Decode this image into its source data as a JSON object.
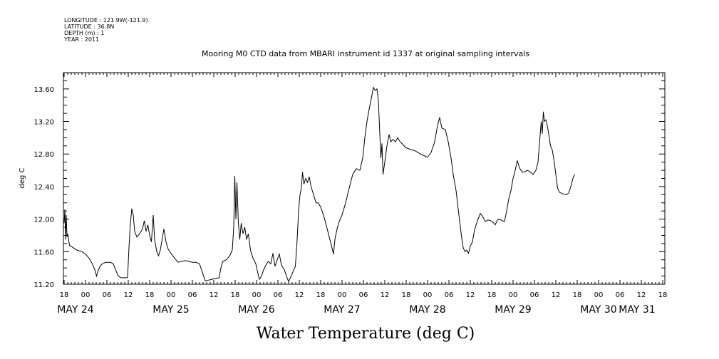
{
  "meta": {
    "longitude": "LONGITUDE : 121.9W(-121.9)",
    "latitude": "LATITUDE : 36.8N",
    "depth": "DEPTH (m) : 1",
    "year": "YEAR : 2011"
  },
  "chart_data": {
    "type": "line",
    "title": "Mooring M0 CTD data from MBARI instrument id 1337 at original sampling intervals",
    "xlabel": "Water Temperature (deg C)",
    "ylabel": "deg C",
    "ylim": [
      11.2,
      13.8
    ],
    "xlim": [
      -6,
      162
    ],
    "x_units": "hours from 2011-05-24 00:00",
    "yticks": [
      "11.20",
      "11.60",
      "12.00",
      "12.40",
      "12.80",
      "13.20",
      "13.60"
    ],
    "ytick_values": [
      11.2,
      11.6,
      12.0,
      12.4,
      12.8,
      13.2,
      13.6
    ],
    "hour_ticks": [
      "18",
      "00",
      "06",
      "12",
      "18",
      "00",
      "06",
      "12",
      "18",
      "00",
      "06",
      "12",
      "18",
      "00",
      "06",
      "12",
      "18",
      "00",
      "06",
      "12",
      "18",
      "00",
      "06",
      "12",
      "18",
      "00",
      "06",
      "12",
      "18"
    ],
    "hour_tick_positions": [
      -6,
      0,
      6,
      12,
      18,
      24,
      30,
      36,
      42,
      48,
      54,
      60,
      66,
      72,
      78,
      84,
      90,
      96,
      102,
      108,
      114,
      120,
      126,
      132,
      138,
      144,
      150,
      156,
      162
    ],
    "day_labels": [
      "MAY 24",
      "MAY 25",
      "MAY 26",
      "MAY 27",
      "MAY 28",
      "MAY 29",
      "MAY 30",
      "MAY 31"
    ],
    "day_label_positions": [
      0,
      24,
      48,
      72,
      96,
      120,
      144,
      168
    ],
    "grid": false,
    "series": [
      {
        "color": "#000000",
        "points": [
          [
            -6,
            11.95
          ],
          [
            -5.8,
            12.12
          ],
          [
            -5.6,
            11.75
          ],
          [
            -5.4,
            12.05
          ],
          [
            -5.2,
            11.78
          ],
          [
            -5,
            11.82
          ],
          [
            -4.5,
            11.68
          ],
          [
            -3.5,
            11.65
          ],
          [
            -2.5,
            11.62
          ],
          [
            -1,
            11.6
          ],
          [
            0,
            11.57
          ],
          [
            1,
            11.52
          ],
          [
            1.8,
            11.46
          ],
          [
            2.6,
            11.38
          ],
          [
            3.1,
            11.3
          ],
          [
            3.5,
            11.36
          ],
          [
            4.2,
            11.43
          ],
          [
            5,
            11.46
          ],
          [
            6,
            11.47
          ],
          [
            7,
            11.47
          ],
          [
            7.8,
            11.45
          ],
          [
            8.5,
            11.37
          ],
          [
            9.2,
            11.3
          ],
          [
            10,
            11.28
          ],
          [
            11,
            11.28
          ],
          [
            11.8,
            11.28
          ],
          [
            12.2,
            11.65
          ],
          [
            12.6,
            11.95
          ],
          [
            13,
            12.13
          ],
          [
            13.4,
            12.05
          ],
          [
            13.8,
            11.85
          ],
          [
            14.4,
            11.78
          ],
          [
            15.2,
            11.82
          ],
          [
            16,
            11.88
          ],
          [
            16.5,
            11.98
          ],
          [
            17,
            11.85
          ],
          [
            17.5,
            11.93
          ],
          [
            18,
            11.8
          ],
          [
            18.5,
            11.72
          ],
          [
            19,
            12.05
          ],
          [
            19.4,
            11.75
          ],
          [
            20,
            11.6
          ],
          [
            20.5,
            11.55
          ],
          [
            21,
            11.62
          ],
          [
            21.5,
            11.75
          ],
          [
            22,
            11.88
          ],
          [
            22.6,
            11.72
          ],
          [
            23.2,
            11.63
          ],
          [
            24,
            11.58
          ],
          [
            25,
            11.52
          ],
          [
            26,
            11.47
          ],
          [
            27,
            11.48
          ],
          [
            28,
            11.49
          ],
          [
            29,
            11.48
          ],
          [
            30,
            11.47
          ],
          [
            31,
            11.47
          ],
          [
            32,
            11.45
          ],
          [
            33,
            11.32
          ],
          [
            33.6,
            11.24
          ],
          [
            34.5,
            11.25
          ],
          [
            35.5,
            11.26
          ],
          [
            36.5,
            11.27
          ],
          [
            37.5,
            11.28
          ],
          [
            38,
            11.4
          ],
          [
            38.5,
            11.48
          ],
          [
            39.5,
            11.5
          ],
          [
            40.5,
            11.55
          ],
          [
            41.2,
            11.62
          ],
          [
            41.6,
            11.9
          ],
          [
            41.9,
            12.53
          ],
          [
            42.2,
            12.0
          ],
          [
            42.5,
            12.45
          ],
          [
            42.9,
            11.95
          ],
          [
            43.3,
            11.75
          ],
          [
            43.7,
            11.95
          ],
          [
            44.2,
            11.82
          ],
          [
            44.7,
            11.9
          ],
          [
            45.2,
            11.75
          ],
          [
            45.7,
            11.82
          ],
          [
            46.3,
            11.62
          ],
          [
            47,
            11.52
          ],
          [
            47.8,
            11.45
          ],
          [
            48.3,
            11.35
          ],
          [
            48.8,
            11.26
          ],
          [
            49.4,
            11.3
          ],
          [
            50,
            11.38
          ],
          [
            50.7,
            11.44
          ],
          [
            51.3,
            11.48
          ],
          [
            52,
            11.45
          ],
          [
            52.6,
            11.58
          ],
          [
            53.2,
            11.42
          ],
          [
            53.8,
            11.5
          ],
          [
            54.4,
            11.57
          ],
          [
            55,
            11.43
          ],
          [
            55.8,
            11.38
          ],
          [
            56.4,
            11.3
          ],
          [
            57,
            11.23
          ],
          [
            57.5,
            11.28
          ],
          [
            58.2,
            11.35
          ],
          [
            58.9,
            11.42
          ],
          [
            59.4,
            11.75
          ],
          [
            59.8,
            12.1
          ],
          [
            60.2,
            12.3
          ],
          [
            60.6,
            12.38
          ],
          [
            60.9,
            12.58
          ],
          [
            61.3,
            12.43
          ],
          [
            61.8,
            12.5
          ],
          [
            62.3,
            12.45
          ],
          [
            62.8,
            12.52
          ],
          [
            63.3,
            12.4
          ],
          [
            64,
            12.3
          ],
          [
            64.7,
            12.2
          ],
          [
            65.3,
            12.2
          ],
          [
            66,
            12.15
          ],
          [
            67,
            12.02
          ],
          [
            68,
            11.85
          ],
          [
            69,
            11.68
          ],
          [
            69.6,
            11.57
          ],
          [
            70,
            11.75
          ],
          [
            70.6,
            11.88
          ],
          [
            71.2,
            11.97
          ],
          [
            72,
            12.05
          ],
          [
            73,
            12.2
          ],
          [
            74,
            12.38
          ],
          [
            75,
            12.55
          ],
          [
            76,
            12.62
          ],
          [
            77,
            12.6
          ],
          [
            77.8,
            12.75
          ],
          [
            78.4,
            13.0
          ],
          [
            79,
            13.2
          ],
          [
            79.6,
            13.35
          ],
          [
            80.2,
            13.48
          ],
          [
            80.8,
            13.62
          ],
          [
            81.3,
            13.58
          ],
          [
            81.8,
            13.6
          ],
          [
            82.2,
            13.45
          ],
          [
            82.6,
            13.05
          ],
          [
            82.9,
            12.75
          ],
          [
            83.2,
            12.93
          ],
          [
            83.5,
            12.55
          ],
          [
            84,
            12.7
          ],
          [
            84.6,
            12.9
          ],
          [
            85.2,
            13.04
          ],
          [
            85.7,
            12.95
          ],
          [
            86.3,
            12.98
          ],
          [
            87,
            12.95
          ],
          [
            87.6,
            13.0
          ],
          [
            88.3,
            12.95
          ],
          [
            89,
            12.92
          ],
          [
            89.8,
            12.88
          ],
          [
            91,
            12.86
          ],
          [
            92.5,
            12.84
          ],
          [
            94,
            12.8
          ],
          [
            95,
            12.78
          ],
          [
            96,
            12.76
          ],
          [
            97,
            12.82
          ],
          [
            98,
            12.95
          ],
          [
            98.8,
            13.15
          ],
          [
            99.4,
            13.25
          ],
          [
            100,
            13.12
          ],
          [
            101,
            13.1
          ],
          [
            101.8,
            12.95
          ],
          [
            102.6,
            12.75
          ],
          [
            103.2,
            12.55
          ],
          [
            104,
            12.35
          ],
          [
            104.8,
            12.05
          ],
          [
            105.5,
            11.8
          ],
          [
            106,
            11.65
          ],
          [
            106.5,
            11.6
          ],
          [
            107,
            11.62
          ],
          [
            107.5,
            11.58
          ],
          [
            108,
            11.67
          ],
          [
            108.6,
            11.72
          ],
          [
            109.2,
            11.87
          ],
          [
            110,
            11.98
          ],
          [
            110.8,
            12.07
          ],
          [
            111.5,
            12.03
          ],
          [
            112.2,
            11.97
          ],
          [
            113,
            11.99
          ],
          [
            113.8,
            11.98
          ],
          [
            114.4,
            11.96
          ],
          [
            115,
            11.93
          ],
          [
            115.6,
            11.99
          ],
          [
            116.2,
            12.0
          ],
          [
            117,
            11.98
          ],
          [
            117.6,
            11.97
          ],
          [
            118.2,
            12.1
          ],
          [
            118.8,
            12.25
          ],
          [
            119.4,
            12.35
          ],
          [
            120,
            12.5
          ],
          [
            120.6,
            12.6
          ],
          [
            121.2,
            12.72
          ],
          [
            121.8,
            12.63
          ],
          [
            122.5,
            12.58
          ],
          [
            123.2,
            12.58
          ],
          [
            124,
            12.6
          ],
          [
            124.8,
            12.58
          ],
          [
            125.6,
            12.55
          ],
          [
            126.4,
            12.6
          ],
          [
            127,
            12.7
          ],
          [
            127.5,
            12.98
          ],
          [
            127.9,
            13.2
          ],
          [
            128.2,
            13.05
          ],
          [
            128.5,
            13.32
          ],
          [
            128.8,
            13.2
          ],
          [
            129.2,
            13.22
          ],
          [
            129.6,
            13.15
          ],
          [
            130,
            13.05
          ],
          [
            130.5,
            12.9
          ],
          [
            131,
            12.85
          ],
          [
            131.5,
            12.72
          ],
          [
            132,
            12.55
          ],
          [
            132.5,
            12.38
          ],
          [
            133,
            12.33
          ],
          [
            134,
            12.31
          ],
          [
            135,
            12.3
          ],
          [
            135.6,
            12.32
          ],
          [
            136.2,
            12.4
          ],
          [
            136.8,
            12.5
          ],
          [
            137.3,
            12.55
          ]
        ]
      }
    ]
  }
}
